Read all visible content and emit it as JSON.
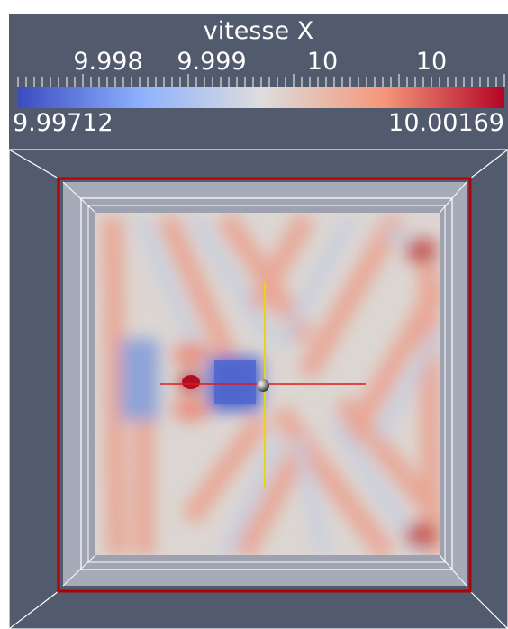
{
  "colorbar": {
    "title": "vitesse X",
    "tick_labels": [
      "9.998",
      "9.999",
      "10",
      "10"
    ],
    "range_min": "9.99712",
    "range_max": "10.00169",
    "colormap_colors": [
      "#3b4cc0",
      "#8db0fe",
      "#dddddd",
      "#f4987a",
      "#b40426"
    ]
  },
  "scene": {
    "background_color": "#525a6e",
    "highlight_box_color": "#b30000",
    "x_axis_color": "#e01a1a",
    "y_axis_color": "#e8d21a",
    "mesh_color": "#ffffff"
  }
}
